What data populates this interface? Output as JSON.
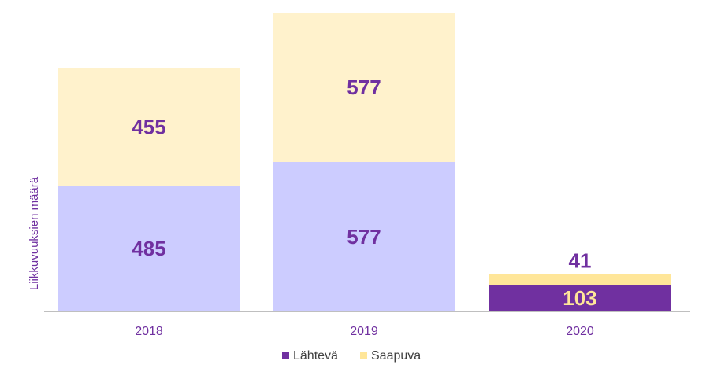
{
  "chart_data": {
    "type": "bar",
    "stacked": true,
    "categories": [
      "2018",
      "2019",
      "2020"
    ],
    "series": [
      {
        "name": "Lähtevä",
        "values": [
          485,
          577,
          103
        ],
        "display_colors": [
          "#ccccff",
          "#ccccff",
          "#7030a0"
        ],
        "legend_color": "#7030a0"
      },
      {
        "name": "Saapuva",
        "values": [
          455,
          577,
          41
        ],
        "display_colors": [
          "#fff2cc",
          "#fff2cc",
          "#ffe699"
        ],
        "legend_color": "#ffe699"
      }
    ],
    "ylabel": "Liikkuvuuksien määrä",
    "xlabel": "",
    "ylim": [
      0,
      1154
    ],
    "grid": false,
    "legend_position": "bottom",
    "colors": {
      "label_purple": "#7030a0",
      "label_light": "#ffe699",
      "axis": "#bfbfbf"
    }
  }
}
